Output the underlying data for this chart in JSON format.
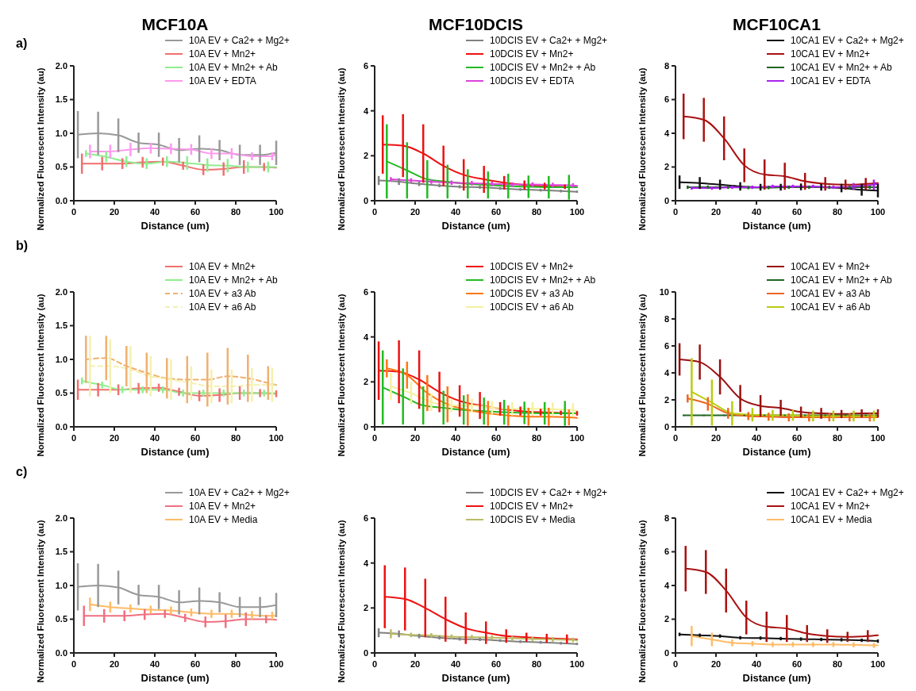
{
  "chart_data": [
    {
      "type": "line",
      "title": "MCF10A",
      "annotations": [
        "a)"
      ],
      "xlabel": "Distance (um)",
      "ylabel": "Normalized Fluorescent Intensity (au)",
      "xlim": [
        0,
        100
      ],
      "xticks": [
        0,
        20,
        40,
        60,
        80,
        100
      ],
      "ylim": [
        0,
        2
      ],
      "yticks": [
        {
          "value": 0,
          "label": "0.0"
        },
        0.5,
        {
          "value": 1,
          "label": "1.0"
        },
        1.5,
        {
          "value": 2,
          "label": "2.0"
        }
      ],
      "legend": "top right",
      "series": [
        {
          "name": "10A EV + Ca2+ + Mg2+",
          "color": "#999999",
          "x": [
            2,
            12,
            22,
            32,
            42,
            52,
            62,
            72,
            82,
            92,
            100
          ],
          "values": [
            0.98,
            1.0,
            0.97,
            0.86,
            0.83,
            0.75,
            0.77,
            0.75,
            0.68,
            0.68,
            0.71
          ],
          "errors": [
            0.35,
            0.32,
            0.25,
            0.15,
            0.18,
            0.18,
            0.2,
            0.15,
            0.15,
            0.15,
            0.18
          ]
        },
        {
          "name": "10A EV + Mn2+",
          "color": "#f07070",
          "x": [
            4,
            14,
            24,
            34,
            44,
            54,
            64,
            74,
            84,
            94,
            100
          ],
          "values": [
            0.55,
            0.55,
            0.55,
            0.57,
            0.58,
            0.52,
            0.46,
            0.47,
            0.5,
            0.5,
            0.49
          ],
          "errors": [
            0.15,
            0.1,
            0.08,
            0.08,
            0.06,
            0.06,
            0.08,
            0.1,
            0.1,
            0.06,
            null
          ]
        },
        {
          "name": "10A EV + Mn2+ + Ab",
          "color": "#90ee90",
          "x": [
            6,
            16,
            26,
            36,
            46,
            56,
            66,
            76,
            86,
            96,
            100
          ],
          "values": [
            0.7,
            0.65,
            0.58,
            0.55,
            0.58,
            0.56,
            0.53,
            0.52,
            0.5,
            0.5,
            0.5
          ],
          "errors": [
            0.05,
            0.08,
            0.08,
            0.08,
            0.08,
            0.1,
            0.1,
            0.1,
            0.08,
            0.08,
            null
          ]
        },
        {
          "name": "10A EV + EDTA",
          "color": "#ff99ee",
          "x": [
            8,
            18,
            28,
            38,
            48,
            58,
            68,
            78,
            88,
            98,
            100
          ],
          "values": [
            0.73,
            0.73,
            0.76,
            0.78,
            0.77,
            0.76,
            0.7,
            0.7,
            0.66,
            0.66,
            0.7
          ],
          "errors": [
            0.1,
            0.1,
            0.1,
            0.08,
            0.08,
            0.08,
            0.08,
            0.08,
            0.06,
            0.06,
            null
          ]
        }
      ]
    },
    {
      "type": "line",
      "title": "MCF10DCIS",
      "xlabel": "Distance (um)",
      "ylabel": "Normalized Fluorescent Intensity (au)",
      "xlim": [
        0,
        100
      ],
      "xticks": [
        0,
        20,
        40,
        60,
        80,
        100
      ],
      "ylim": [
        0,
        6
      ],
      "yticks": [
        0,
        2,
        4,
        6
      ],
      "legend": "top right",
      "series": [
        {
          "name": "10DCIS EV + Ca2+ + Mg2+",
          "color": "#808080",
          "x": [
            2,
            12,
            22,
            32,
            42,
            52,
            62,
            72,
            82,
            92,
            100
          ],
          "values": [
            0.9,
            0.85,
            0.75,
            0.68,
            0.62,
            0.6,
            0.55,
            0.5,
            0.47,
            0.43,
            0.4
          ],
          "errors": [
            0.2,
            0.15,
            0.1,
            0.08,
            0.07,
            0.07,
            0.06,
            0.06,
            0.06,
            0.06,
            0.05
          ]
        },
        {
          "name": "10DCIS EV + Mn2+",
          "color": "#ee1111",
          "x": [
            4,
            14,
            24,
            34,
            44,
            54,
            64,
            74,
            84,
            94
          ],
          "values": [
            2.5,
            2.45,
            2.1,
            1.55,
            1.15,
            0.95,
            0.8,
            0.7,
            0.65,
            0.62
          ],
          "errors": [
            1.3,
            1.4,
            1.3,
            0.9,
            0.7,
            0.6,
            0.3,
            0.2,
            0.15,
            0.1
          ]
        },
        {
          "name": "10DCIS EV + Mn2+ + Ab",
          "color": "#22bb22",
          "x": [
            6,
            16,
            26,
            36,
            46,
            56,
            66,
            76,
            86,
            96,
            100
          ],
          "values": [
            1.75,
            1.35,
            0.95,
            0.85,
            0.75,
            0.7,
            0.65,
            0.62,
            0.6,
            0.6,
            0.6
          ],
          "errors": [
            1.65,
            1.25,
            0.85,
            0.75,
            0.65,
            0.6,
            0.55,
            0.5,
            0.5,
            0.55,
            null
          ]
        },
        {
          "name": "10DCIS EV + EDTA",
          "color": "#dd44dd",
          "x": [
            8,
            18,
            28,
            38,
            48,
            58,
            68,
            78,
            88,
            98,
            100
          ],
          "values": [
            0.95,
            0.9,
            0.85,
            0.8,
            0.78,
            0.75,
            0.72,
            0.72,
            0.7,
            0.68,
            0.66
          ],
          "errors": [
            0.1,
            0.1,
            0.1,
            0.1,
            0.1,
            0.1,
            0.1,
            0.1,
            0.1,
            0.1,
            null
          ]
        }
      ]
    },
    {
      "type": "line",
      "title": "MCF10CA1",
      "xlabel": "Distance (um)",
      "ylabel": "Normalized Fluorescent Intensity (au)",
      "xlim": [
        0,
        100
      ],
      "xticks": [
        0,
        20,
        40,
        60,
        80,
        100
      ],
      "ylim": [
        0,
        8
      ],
      "yticks": [
        0,
        2,
        4,
        6,
        8
      ],
      "legend": "top right",
      "series": [
        {
          "name": "10CA1 EV + Ca2+ + Mg2+",
          "color": "#111111",
          "x": [
            2,
            12,
            22,
            32,
            42,
            52,
            62,
            72,
            82,
            92,
            100
          ],
          "values": [
            1.1,
            1.05,
            0.95,
            0.85,
            0.8,
            0.8,
            0.82,
            0.8,
            0.75,
            0.65,
            0.6
          ],
          "errors": [
            0.4,
            0.35,
            0.3,
            0.25,
            0.2,
            0.2,
            0.2,
            0.2,
            0.25,
            0.35,
            0.4
          ]
        },
        {
          "name": "10CA1 EV + Mn2+",
          "color": "#aa1111",
          "x": [
            4,
            14,
            24,
            34,
            44,
            54,
            64,
            74,
            84,
            94,
            100
          ],
          "values": [
            5.0,
            4.8,
            3.7,
            2.1,
            1.55,
            1.45,
            1.15,
            1.0,
            0.95,
            1.0,
            1.05
          ],
          "errors": [
            1.35,
            1.3,
            1.3,
            1.0,
            0.9,
            0.8,
            0.5,
            0.4,
            0.3,
            0.35,
            null
          ]
        },
        {
          "name": "10CA1 EV + Mn2+ + Ab",
          "color": "#226622",
          "x": [
            6,
            16,
            26,
            36,
            46,
            56,
            66,
            76,
            86,
            96,
            100
          ],
          "values": [
            0.8,
            0.8,
            0.8,
            0.78,
            0.78,
            0.8,
            0.8,
            0.8,
            0.8,
            0.8,
            0.8
          ],
          "errors": [
            0.1,
            0.1,
            0.1,
            0.1,
            0.1,
            0.1,
            0.1,
            0.1,
            0.1,
            0.1,
            null
          ]
        },
        {
          "name": "10CA1 EV + EDTA",
          "color": "#aa22ee",
          "x": [
            8,
            18,
            28,
            38,
            48,
            58,
            68,
            78,
            88,
            98,
            100
          ],
          "values": [
            0.75,
            0.75,
            0.8,
            0.8,
            0.85,
            0.85,
            0.85,
            0.8,
            0.85,
            0.95,
            1.0
          ],
          "errors": [
            0.1,
            0.1,
            0.1,
            0.1,
            0.1,
            0.1,
            0.1,
            0.1,
            0.2,
            0.3,
            null
          ]
        }
      ]
    },
    {
      "type": "line",
      "annotations": [
        "b)"
      ],
      "xlabel": "Distance (um)",
      "ylabel": "Normalized Fluorescent Intensity (au)",
      "xlim": [
        0,
        100
      ],
      "xticks": [
        0,
        20,
        40,
        60,
        80,
        100
      ],
      "ylim": [
        0,
        2
      ],
      "yticks": [
        {
          "value": 0,
          "label": "0.0"
        },
        0.5,
        {
          "value": 1,
          "label": "1.0"
        },
        1.5,
        {
          "value": 2,
          "label": "2.0"
        }
      ],
      "legend": "top right",
      "series": [
        {
          "name": "10A EV + Mn2+",
          "color": "#f07070",
          "x": [
            2,
            12,
            22,
            32,
            42,
            52,
            62,
            72,
            82,
            92,
            100
          ],
          "values": [
            0.55,
            0.55,
            0.55,
            0.57,
            0.58,
            0.52,
            0.46,
            0.47,
            0.5,
            0.5,
            0.49
          ],
          "errors": [
            0.15,
            0.1,
            0.08,
            0.08,
            0.06,
            0.06,
            0.08,
            0.1,
            0.1,
            0.06,
            0.05
          ]
        },
        {
          "name": "10A EV + Mn2+ + Ab",
          "color": "#90ee90",
          "x": [
            4,
            14,
            24,
            34,
            44,
            54,
            64,
            74,
            84,
            94,
            100
          ],
          "values": [
            0.68,
            0.62,
            0.55,
            0.55,
            0.55,
            0.5,
            0.5,
            0.5,
            0.5,
            0.5,
            0.5
          ],
          "errors": [
            0.05,
            0.05,
            0.05,
            0.05,
            0.05,
            0.05,
            0.05,
            0.05,
            0.05,
            0.05,
            null
          ]
        },
        {
          "name": "10A EV + a3 Ab",
          "color": "#f0b070",
          "line_style": "dashed",
          "x": [
            6,
            16,
            26,
            36,
            46,
            56,
            66,
            76,
            86,
            96,
            100
          ],
          "values": [
            1.0,
            1.02,
            0.9,
            0.8,
            0.72,
            0.7,
            0.7,
            0.75,
            0.72,
            0.65,
            0.62
          ],
          "errors": [
            0.35,
            0.33,
            0.3,
            0.3,
            0.3,
            0.35,
            0.4,
            0.42,
            0.35,
            0.25,
            null
          ]
        },
        {
          "name": "10A EV + a6 Ab",
          "color": "#f5f0b0",
          "line_style": "dashed",
          "x": [
            8,
            18,
            28,
            38,
            48,
            58,
            68,
            78,
            88,
            98,
            100
          ],
          "values": [
            0.9,
            0.9,
            0.85,
            0.75,
            0.7,
            0.65,
            0.6,
            0.6,
            0.62,
            0.62,
            0.6
          ],
          "errors": [
            0.45,
            0.4,
            0.35,
            0.3,
            0.3,
            0.25,
            0.25,
            0.25,
            0.25,
            0.25,
            null
          ]
        }
      ]
    },
    {
      "type": "line",
      "xlabel": "Distance (um)",
      "ylabel": "Normalized Fluorescent Intensity (au)",
      "xlim": [
        0,
        100
      ],
      "xticks": [
        0,
        20,
        40,
        60,
        80,
        100
      ],
      "ylim": [
        0,
        6
      ],
      "yticks": [
        0,
        2,
        4,
        6
      ],
      "legend": "top right",
      "series": [
        {
          "name": "10DCIS EV + Mn2+",
          "color": "#ee1111",
          "x": [
            2,
            12,
            22,
            32,
            42,
            52,
            62,
            72,
            82,
            92,
            100
          ],
          "values": [
            2.5,
            2.45,
            2.1,
            1.55,
            1.15,
            0.95,
            0.8,
            0.7,
            0.65,
            0.62,
            0.6
          ],
          "errors": [
            1.3,
            1.4,
            1.3,
            0.9,
            0.7,
            0.6,
            0.3,
            0.2,
            0.15,
            0.1,
            0.1
          ]
        },
        {
          "name": "10DCIS EV + Mn2+ + Ab",
          "color": "#22bb22",
          "x": [
            4,
            14,
            24,
            34,
            44,
            54,
            64,
            74,
            84,
            94,
            100
          ],
          "values": [
            1.75,
            1.35,
            0.95,
            0.85,
            0.75,
            0.7,
            0.65,
            0.62,
            0.6,
            0.6,
            0.6
          ],
          "errors": [
            1.65,
            1.25,
            0.85,
            0.75,
            0.65,
            0.6,
            0.55,
            0.5,
            0.5,
            0.55,
            null
          ]
        },
        {
          "name": "10DCIS EV + a3 Ab",
          "color": "#ff7711",
          "x": [
            6,
            16,
            26,
            36,
            46,
            56,
            66,
            76,
            86,
            96,
            100
          ],
          "values": [
            2.6,
            2.3,
            1.5,
            1.0,
            0.75,
            0.6,
            0.5,
            0.45,
            0.45,
            0.42,
            0.4
          ],
          "errors": [
            0.4,
            0.6,
            0.8,
            0.8,
            0.7,
            0.55,
            0.45,
            0.4,
            0.4,
            0.35,
            null
          ]
        },
        {
          "name": "10DCIS EV + a6 Ab",
          "color": "#f5f0a0",
          "x": [
            8,
            18,
            28,
            38,
            48,
            58,
            68,
            78,
            88,
            98,
            100
          ],
          "values": [
            1.8,
            1.5,
            1.1,
            0.95,
            0.95,
            0.85,
            0.8,
            0.8,
            0.78,
            0.75,
            0.7
          ],
          "errors": [
            0.6,
            0.5,
            0.4,
            0.3,
            0.3,
            0.3,
            0.3,
            0.3,
            0.3,
            0.3,
            null
          ]
        }
      ]
    },
    {
      "type": "line",
      "xlabel": "Distance (um)",
      "ylabel": "Normalized Fluorescent Intensity (au)",
      "xlim": [
        0,
        100
      ],
      "xticks": [
        0,
        20,
        40,
        60,
        80,
        100
      ],
      "ylim": [
        0,
        10
      ],
      "yticks": [
        0,
        2,
        4,
        6,
        8,
        10
      ],
      "legend": "top right",
      "series": [
        {
          "name": "10CA1 EV + Mn2+",
          "color": "#991111",
          "x": [
            2,
            12,
            22,
            32,
            42,
            52,
            62,
            72,
            82,
            92,
            100
          ],
          "values": [
            5.0,
            4.8,
            3.7,
            2.1,
            1.55,
            1.4,
            1.1,
            1.0,
            0.95,
            1.0,
            1.0
          ],
          "errors": [
            1.2,
            1.3,
            1.3,
            1.0,
            0.8,
            0.6,
            0.4,
            0.4,
            0.3,
            0.3,
            0.3
          ]
        },
        {
          "name": "10CA1 EV + Mn2+ + Ab",
          "color": "#226622",
          "x": [
            4,
            14,
            24,
            34,
            44,
            54,
            64,
            74,
            84,
            94,
            100
          ],
          "values": [
            0.85,
            0.85,
            0.85,
            0.85,
            0.85,
            0.85,
            0.85,
            0.85,
            0.85,
            0.85,
            0.85
          ],
          "errors": [
            0.05,
            0.05,
            0.05,
            0.05,
            0.05,
            0.05,
            0.05,
            0.05,
            0.05,
            0.05,
            null
          ]
        },
        {
          "name": "10CA1 EV + a3 Ab",
          "color": "#ee6622",
          "x": [
            6,
            16,
            26,
            36,
            46,
            56,
            66,
            76,
            86,
            96,
            100
          ],
          "values": [
            2.1,
            1.7,
            1.0,
            0.8,
            0.75,
            0.7,
            0.7,
            0.7,
            0.7,
            0.7,
            0.7
          ],
          "errors": [
            0.3,
            0.5,
            0.4,
            0.3,
            0.3,
            0.3,
            0.3,
            0.3,
            0.3,
            0.3,
            null
          ]
        },
        {
          "name": "10CA1 EV + a6 Ab",
          "color": "#bbcc11",
          "x": [
            8,
            18,
            28,
            38,
            48,
            58,
            68,
            78,
            88,
            98,
            100
          ],
          "values": [
            2.6,
            1.8,
            1.0,
            0.9,
            0.85,
            0.85,
            0.8,
            0.8,
            0.8,
            0.8,
            0.8
          ],
          "errors": [
            2.5,
            1.7,
            0.9,
            0.5,
            0.4,
            0.4,
            0.4,
            0.4,
            0.4,
            0.4,
            null
          ]
        }
      ]
    },
    {
      "type": "line",
      "annotations": [
        "c)"
      ],
      "xlabel": "Distance (um)",
      "ylabel": "Normalized Fluorescent Intensity (au)",
      "xlim": [
        0,
        100
      ],
      "xticks": [
        0,
        20,
        40,
        60,
        80,
        100
      ],
      "ylim": [
        0,
        2
      ],
      "yticks": [
        {
          "value": 0,
          "label": "0.0"
        },
        0.5,
        {
          "value": 1,
          "label": "1.0"
        },
        1.5,
        {
          "value": 2,
          "label": "2.0"
        }
      ],
      "legend": "top right",
      "series": [
        {
          "name": "10A EV + Ca2+ + Mg2+",
          "color": "#999999",
          "x": [
            2,
            12,
            22,
            32,
            42,
            52,
            62,
            72,
            82,
            92,
            100
          ],
          "values": [
            0.98,
            1.0,
            0.97,
            0.86,
            0.83,
            0.75,
            0.77,
            0.75,
            0.68,
            0.68,
            0.71
          ],
          "errors": [
            0.35,
            0.32,
            0.25,
            0.15,
            0.18,
            0.18,
            0.2,
            0.15,
            0.15,
            0.15,
            0.18
          ]
        },
        {
          "name": "10A EV + Mn2+",
          "color": "#f07080",
          "x": [
            5,
            15,
            25,
            35,
            45,
            55,
            65,
            75,
            85,
            95,
            100
          ],
          "values": [
            0.55,
            0.55,
            0.55,
            0.57,
            0.58,
            0.52,
            0.46,
            0.47,
            0.5,
            0.5,
            0.49
          ],
          "errors": [
            0.15,
            0.1,
            0.08,
            0.08,
            0.06,
            0.06,
            0.08,
            0.1,
            0.1,
            0.06,
            null
          ]
        },
        {
          "name": "10A EV + Media",
          "color": "#ffbb66",
          "x": [
            8,
            18,
            28,
            38,
            48,
            58,
            68,
            78,
            88,
            98,
            100
          ],
          "values": [
            0.72,
            0.68,
            0.66,
            0.64,
            0.63,
            0.6,
            0.58,
            0.58,
            0.56,
            0.55,
            0.55
          ],
          "errors": [
            0.1,
            0.08,
            0.06,
            0.06,
            0.06,
            0.06,
            0.06,
            0.06,
            0.06,
            0.06,
            null
          ]
        }
      ]
    },
    {
      "type": "line",
      "xlabel": "Distance (um)",
      "ylabel": "Normalized Fluorescent Intensity (au)",
      "xlim": [
        0,
        100
      ],
      "xticks": [
        0,
        20,
        40,
        60,
        80,
        100
      ],
      "ylim": [
        0,
        6
      ],
      "yticks": [
        0,
        2,
        4,
        6
      ],
      "legend": "top right",
      "series": [
        {
          "name": "10DCIS EV + Ca2+ + Mg2+",
          "color": "#808080",
          "x": [
            2,
            12,
            22,
            32,
            42,
            52,
            62,
            72,
            82,
            92,
            100
          ],
          "values": [
            0.9,
            0.85,
            0.75,
            0.68,
            0.62,
            0.6,
            0.55,
            0.5,
            0.47,
            0.43,
            0.4
          ],
          "errors": [
            0.2,
            0.15,
            0.1,
            0.08,
            0.07,
            0.07,
            0.06,
            0.06,
            0.06,
            0.06,
            0.05
          ]
        },
        {
          "name": "10DCIS EV + Mn2+",
          "color": "#ee1111",
          "x": [
            5,
            15,
            25,
            35,
            45,
            55,
            65,
            75,
            85,
            95,
            100
          ],
          "values": [
            2.5,
            2.4,
            2.0,
            1.5,
            1.1,
            0.9,
            0.75,
            0.7,
            0.65,
            0.62,
            0.6
          ],
          "errors": [
            1.4,
            1.4,
            1.3,
            1.0,
            0.7,
            0.5,
            0.3,
            0.2,
            0.2,
            0.2,
            null
          ]
        },
        {
          "name": "10DCIS EV + Media",
          "color": "#bbbb66",
          "x": [
            8,
            18,
            28,
            38,
            48,
            58,
            68,
            78,
            88,
            98,
            100
          ],
          "values": [
            0.85,
            0.8,
            0.78,
            0.72,
            0.7,
            0.68,
            0.65,
            0.62,
            0.6,
            0.58,
            0.55
          ],
          "errors": [
            0.2,
            0.1,
            0.1,
            0.1,
            0.1,
            0.1,
            0.1,
            0.1,
            0.1,
            0.1,
            null
          ]
        }
      ]
    },
    {
      "type": "line",
      "xlabel": "Distance (um)",
      "ylabel": "Normalized Fluorescent Intensity (au)",
      "xlim": [
        0,
        100
      ],
      "xticks": [
        0,
        20,
        40,
        60,
        80,
        100
      ],
      "ylim": [
        0,
        8
      ],
      "yticks": [
        0,
        2,
        4,
        6,
        8
      ],
      "legend": "top right",
      "series": [
        {
          "name": "10CA1 EV + Ca2+ + Mg2+",
          "color": "#111111",
          "x": [
            2,
            12,
            22,
            32,
            42,
            52,
            62,
            72,
            82,
            92,
            100
          ],
          "values": [
            1.1,
            1.05,
            1.0,
            0.9,
            0.88,
            0.85,
            0.82,
            0.8,
            0.78,
            0.75,
            0.7
          ],
          "errors": [
            0.1,
            0.1,
            0.1,
            0.1,
            0.1,
            0.1,
            0.1,
            0.1,
            0.1,
            0.1,
            0.1
          ]
        },
        {
          "name": "10CA1 EV + Mn2+",
          "color": "#aa1111",
          "x": [
            5,
            15,
            25,
            35,
            45,
            55,
            65,
            75,
            85,
            95,
            100
          ],
          "values": [
            5.0,
            4.8,
            3.7,
            2.1,
            1.55,
            1.45,
            1.15,
            1.0,
            0.95,
            1.0,
            1.05
          ],
          "errors": [
            1.35,
            1.3,
            1.3,
            1.0,
            0.9,
            0.8,
            0.5,
            0.4,
            0.3,
            0.35,
            null
          ]
        },
        {
          "name": "10CA1 EV + Media",
          "color": "#ffbb66",
          "x": [
            8,
            18,
            28,
            38,
            48,
            58,
            68,
            78,
            88,
            98,
            100
          ],
          "values": [
            1.0,
            0.8,
            0.6,
            0.55,
            0.5,
            0.5,
            0.5,
            0.5,
            0.48,
            0.45,
            0.45
          ],
          "errors": [
            0.6,
            0.4,
            0.2,
            0.15,
            0.15,
            0.15,
            0.15,
            0.15,
            0.15,
            0.15,
            null
          ]
        }
      ]
    }
  ]
}
